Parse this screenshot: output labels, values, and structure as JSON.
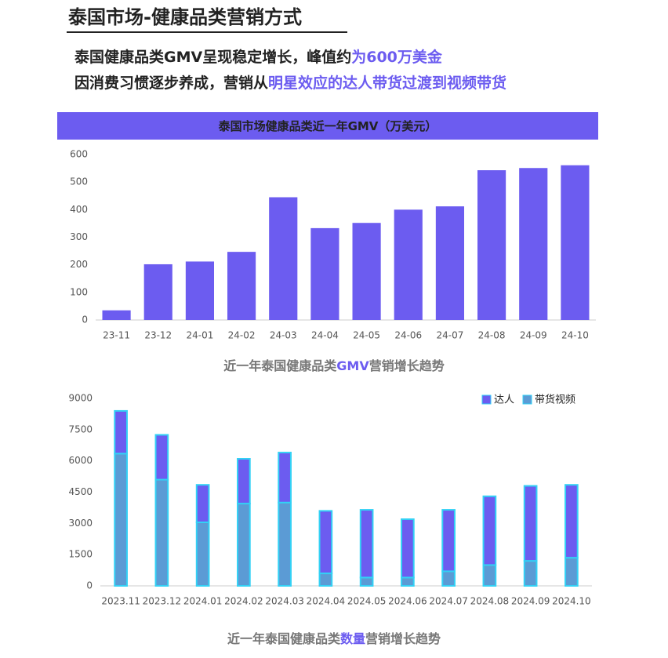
{
  "header": {
    "title": "泰国市场-健康品类营销方式",
    "lines": [
      {
        "plain": "泰国健康品类GMV呈现稳定增长，峰值约",
        "accent": "为600万美金"
      },
      {
        "plain": "因消费习惯逐步养成，营销从",
        "accent": "明星效应的达人带货过渡到视频带货"
      }
    ],
    "accent_color": "#6c5cf0"
  },
  "chart_data": [
    {
      "type": "bar",
      "title": "泰国市场健康品类近一年GMV（万美元）",
      "title_band_color": "#6c5cf0",
      "categories": [
        "23-11",
        "23-12",
        "24-01",
        "24-02",
        "24-03",
        "24-04",
        "24-05",
        "24-06",
        "24-07",
        "24-08",
        "24-09",
        "24-10"
      ],
      "values": [
        35,
        202,
        212,
        247,
        445,
        333,
        352,
        400,
        412,
        543,
        551,
        561
      ],
      "color": "#6c5cf0",
      "ylim": [
        0,
        600
      ],
      "yticks": [
        0,
        100,
        200,
        300,
        400,
        500,
        600
      ],
      "caption": {
        "before": "近一年泰国健康品类",
        "accent": "GMV",
        "after": "营销增长趋势"
      }
    },
    {
      "type": "stacked_bar",
      "categories": [
        "2023.11",
        "2023.12",
        "2024.01",
        "2024.02",
        "2024.03",
        "2024.04",
        "2024.05",
        "2024.06",
        "2024.07",
        "2024.08",
        "2024.09",
        "2024.10"
      ],
      "series": [
        {
          "name": "达人",
          "color": "#6c5cf0",
          "values": [
            2050,
            2150,
            1800,
            2150,
            2400,
            3000,
            3250,
            2800,
            2950,
            3300,
            3600,
            3500
          ]
        },
        {
          "name": "带货视频",
          "color": "#5b9bd5",
          "values": [
            6350,
            5100,
            3050,
            3950,
            4000,
            600,
            400,
            400,
            700,
            1000,
            1200,
            1350
          ]
        }
      ],
      "edge_color": "#33d1f5",
      "ylim": [
        0,
        9000
      ],
      "yticks": [
        0,
        1500,
        3000,
        4500,
        6000,
        7500,
        9000
      ],
      "legend": "top-right",
      "caption": {
        "before": "近一年泰国健康品类",
        "accent": "数量",
        "after": "营销增长趋势"
      }
    }
  ]
}
